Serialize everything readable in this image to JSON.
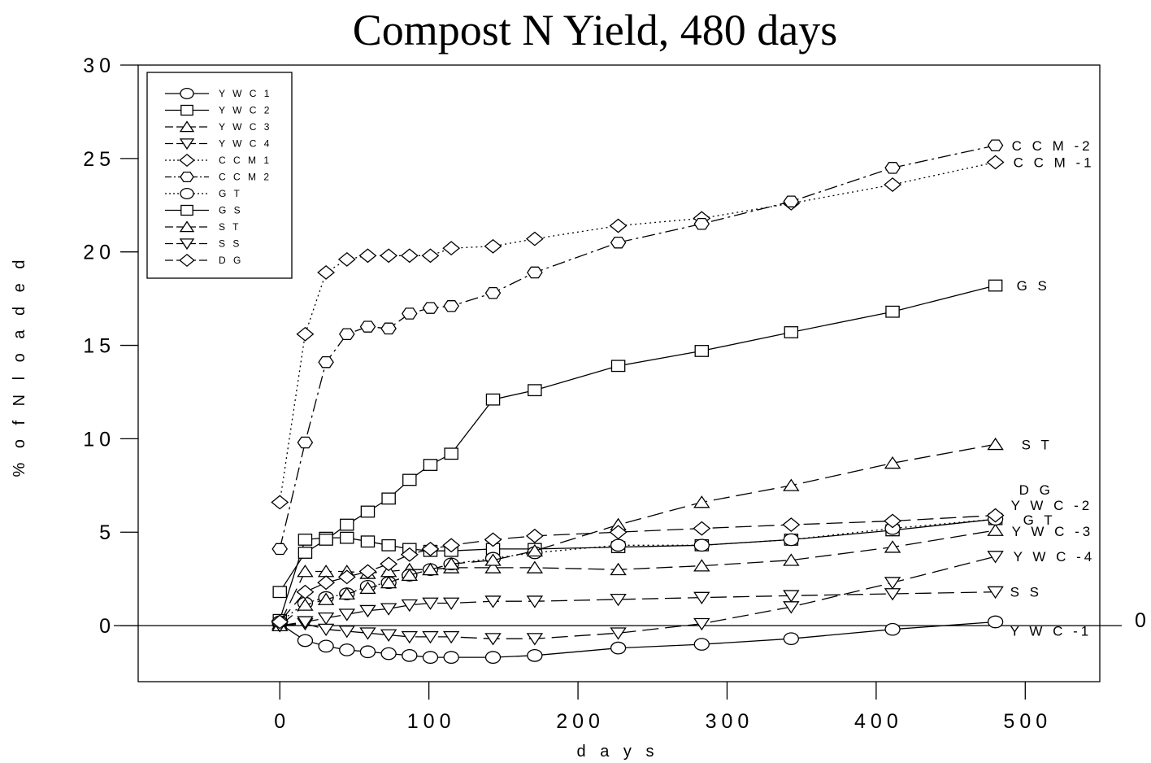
{
  "chart_data": {
    "type": "line",
    "title": "Compost N Yield, 480 days",
    "xlabel": "d a y s",
    "ylabel": "%   o f  N   l o a d e d",
    "xlim": [
      -95,
      550
    ],
    "ylim": [
      -3,
      30
    ],
    "xticks": [
      0,
      100,
      200,
      300,
      400,
      500
    ],
    "xtick_labels": [
      "0",
      "100",
      "200",
      "300",
      "400",
      "500"
    ],
    "yticks": [
      0,
      5,
      10,
      15,
      20,
      25,
      30
    ],
    "ytick_labels": [
      "0",
      "5",
      "10",
      "15",
      "20",
      "25",
      "30"
    ],
    "grid": false,
    "legend_position": "top-left",
    "reference_line": {
      "y": 0,
      "label": "0"
    },
    "series": [
      {
        "name": "Y W C 1",
        "end_label": "Y W C -1",
        "marker": "circle",
        "dash": "solid",
        "x": [
          0,
          17,
          31,
          45,
          59,
          73,
          87,
          101,
          115,
          143,
          171,
          227,
          283,
          343,
          411,
          480
        ],
        "y": [
          0.1,
          -0.8,
          -1.1,
          -1.3,
          -1.4,
          -1.5,
          -1.6,
          -1.7,
          -1.7,
          -1.7,
          -1.6,
          -1.2,
          -1.0,
          -0.7,
          -0.2,
          0.2
        ]
      },
      {
        "name": "Y W C 2",
        "end_label": "Y W C -2",
        "marker": "square",
        "dash": "solid",
        "x": [
          0,
          17,
          31,
          45,
          59,
          73,
          87,
          101,
          115,
          143,
          171,
          227,
          283,
          343,
          411,
          480
        ],
        "y": [
          0.3,
          4.6,
          4.7,
          4.7,
          4.5,
          4.3,
          4.1,
          4.0,
          4.0,
          4.1,
          4.1,
          4.2,
          4.3,
          4.6,
          5.1,
          5.7
        ]
      },
      {
        "name": "Y W C 3",
        "end_label": "Y W C -3",
        "marker": "triangle-up",
        "dash": "longdash",
        "x": [
          0,
          17,
          31,
          45,
          59,
          73,
          87,
          101,
          115,
          143,
          171,
          227,
          283,
          343,
          411,
          480
        ],
        "y": [
          0.1,
          2.9,
          2.9,
          2.9,
          2.8,
          2.9,
          3.0,
          3.0,
          3.1,
          3.1,
          3.1,
          3.0,
          3.2,
          3.5,
          4.2,
          5.1
        ]
      },
      {
        "name": "Y W C 4",
        "end_label": "Y W C -4",
        "marker": "triangle-down",
        "dash": "longdash",
        "x": [
          0,
          17,
          31,
          45,
          59,
          73,
          87,
          101,
          115,
          143,
          171,
          227,
          283,
          343,
          411,
          480
        ],
        "y": [
          0.0,
          0.1,
          -0.2,
          -0.3,
          -0.4,
          -0.5,
          -0.6,
          -0.6,
          -0.6,
          -0.7,
          -0.7,
          -0.4,
          0.1,
          1.0,
          2.3,
          3.7
        ]
      },
      {
        "name": "C C M 1",
        "end_label": "C C M -1",
        "marker": "diamond",
        "dash": "dotted",
        "x": [
          0,
          17,
          31,
          45,
          59,
          73,
          87,
          101,
          115,
          143,
          171,
          227,
          283,
          343,
          411,
          480
        ],
        "y": [
          6.6,
          15.6,
          18.9,
          19.6,
          19.8,
          19.8,
          19.8,
          19.8,
          20.2,
          20.3,
          20.7,
          21.4,
          21.8,
          22.6,
          23.6,
          24.8
        ]
      },
      {
        "name": "C C M 2",
        "end_label": "C C M -2",
        "marker": "hexagon",
        "dash": "dashdot",
        "x": [
          0,
          17,
          31,
          45,
          59,
          73,
          87,
          101,
          115,
          143,
          171,
          227,
          283,
          343,
          411,
          480
        ],
        "y": [
          4.1,
          9.8,
          14.1,
          15.6,
          16.0,
          15.9,
          16.7,
          17.0,
          17.1,
          17.8,
          18.9,
          20.5,
          21.5,
          22.7,
          24.5,
          25.7
        ]
      },
      {
        "name": "G T",
        "end_label": "G T",
        "marker": "circle",
        "dash": "dotted",
        "x": [
          0,
          17,
          31,
          45,
          59,
          73,
          87,
          101,
          115,
          143,
          171,
          227,
          283,
          343,
          411,
          480
        ],
        "y": [
          0.2,
          1.2,
          1.5,
          1.7,
          2.1,
          2.3,
          2.7,
          3.0,
          3.3,
          3.6,
          3.9,
          4.3,
          4.3,
          4.6,
          5.2,
          5.7
        ]
      },
      {
        "name": "G S",
        "end_label": "G S",
        "marker": "square",
        "dash": "solid",
        "x": [
          0,
          17,
          31,
          45,
          59,
          73,
          87,
          101,
          115,
          143,
          171,
          227,
          283,
          343,
          411,
          480
        ],
        "y": [
          1.8,
          3.9,
          4.6,
          5.4,
          6.1,
          6.8,
          7.8,
          8.6,
          9.2,
          12.1,
          12.6,
          13.9,
          14.7,
          15.7,
          16.8,
          18.2
        ]
      },
      {
        "name": "S T",
        "end_label": "S T",
        "marker": "triangle-up",
        "dash": "longdash",
        "x": [
          0,
          17,
          31,
          45,
          59,
          73,
          87,
          101,
          115,
          143,
          171,
          227,
          283,
          343,
          411,
          480
        ],
        "y": [
          0.0,
          1.1,
          1.4,
          1.7,
          2.0,
          2.3,
          2.7,
          3.0,
          3.3,
          3.5,
          4.0,
          5.4,
          6.6,
          7.5,
          8.7,
          9.7
        ]
      },
      {
        "name": "S S",
        "end_label": "S S",
        "marker": "triangle-down",
        "dash": "longdash",
        "x": [
          0,
          17,
          31,
          45,
          59,
          73,
          87,
          101,
          115,
          143,
          171,
          227,
          283,
          343,
          411,
          480
        ],
        "y": [
          0.0,
          0.2,
          0.4,
          0.6,
          0.8,
          0.9,
          1.1,
          1.2,
          1.2,
          1.3,
          1.3,
          1.4,
          1.5,
          1.6,
          1.7,
          1.8
        ]
      },
      {
        "name": "D G",
        "end_label": "D G",
        "marker": "diamond",
        "dash": "longdash",
        "x": [
          0,
          17,
          31,
          45,
          59,
          73,
          87,
          101,
          115,
          143,
          171,
          227,
          283,
          343,
          411,
          480
        ],
        "y": [
          0.2,
          1.8,
          2.3,
          2.6,
          2.9,
          3.3,
          3.8,
          4.1,
          4.3,
          4.6,
          4.8,
          5.0,
          5.2,
          5.4,
          5.6,
          5.9
        ]
      }
    ]
  }
}
